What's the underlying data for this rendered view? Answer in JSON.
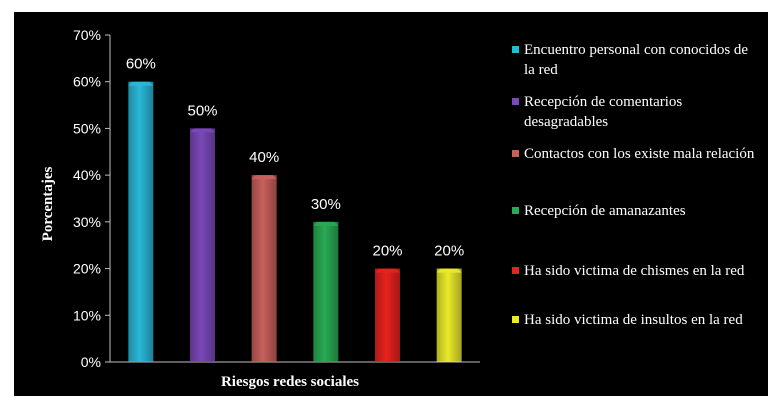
{
  "chart_data": {
    "type": "bar",
    "categories": [
      "Encuentro personal con conocidos de la red",
      "Recepción de comentarios desagradables",
      "Contactos con los existe mala relación",
      "Recepción de  amanazantes",
      " Ha sido victima de chismes en la red",
      "Ha sido victima de insultos en la red"
    ],
    "values": [
      60,
      50,
      40,
      30,
      20,
      20
    ],
    "data_labels": [
      "60%",
      "50%",
      "40%",
      "30%",
      "20%",
      "20%"
    ],
    "colors": [
      "#29b8d8",
      "#7a48b8",
      "#c8605c",
      "#2aaa55",
      "#e8221e",
      "#eaea2a"
    ],
    "xlabel": "Riesgos redes sociales",
    "ylabel": "Porcentajes",
    "ylim": [
      0,
      70
    ],
    "yticks": [
      "0%",
      "10%",
      "20%",
      "30%",
      "40%",
      "50%",
      "60%",
      "70%"
    ],
    "grid": false,
    "legend": "right"
  }
}
